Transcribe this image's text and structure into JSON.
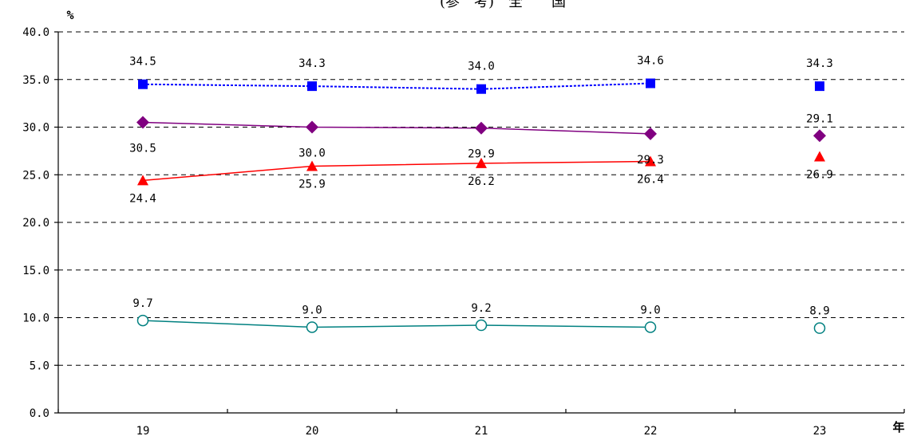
{
  "chart_data": {
    "type": "line",
    "title": "(参　考)　全　　国",
    "ylabel": "%",
    "xlabel": "年",
    "ylim": [
      0,
      40
    ],
    "yticks": [
      "0.0",
      "5.0",
      "10.0",
      "15.0",
      "20.0",
      "25.0",
      "30.0",
      "35.0",
      "40.0"
    ],
    "categories": [
      "19",
      "20",
      "21",
      "22",
      "23"
    ],
    "grid": true,
    "series": [
      {
        "values": [
          34.5,
          34.3,
          34.0,
          34.6,
          34.3
        ],
        "labels": [
          "34.5",
          "34.3",
          "34.0",
          "34.6",
          "34.3"
        ],
        "color": "#0000ff",
        "marker": "square",
        "line_style": "dotted",
        "connected_points": 4
      },
      {
        "values": [
          30.5,
          30.0,
          29.9,
          29.3,
          29.1
        ],
        "labels": [
          "30.5",
          "30.0",
          "29.9",
          "29.3",
          "29.1"
        ],
        "color": "#800080",
        "marker": "diamond",
        "line_style": "solid",
        "connected_points": 4
      },
      {
        "values": [
          24.4,
          25.9,
          26.2,
          26.4,
          26.9
        ],
        "labels": [
          "24.4",
          "25.9",
          "26.2",
          "26.4",
          "26.9"
        ],
        "color": "#ff0000",
        "marker": "triangle",
        "line_style": "solid",
        "connected_points": 4
      },
      {
        "values": [
          9.7,
          9.0,
          9.2,
          9.0,
          8.9
        ],
        "labels": [
          "9.7",
          "9.0",
          "9.2",
          "9.0",
          "8.9"
        ],
        "color": "#008080",
        "marker": "circle",
        "line_style": "solid",
        "connected_points": 4
      }
    ]
  }
}
